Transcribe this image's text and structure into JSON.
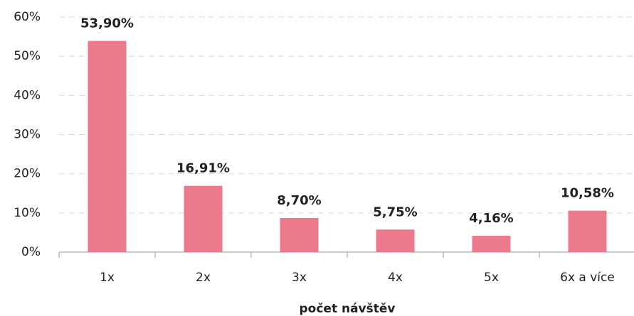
{
  "chart_data": {
    "type": "bar",
    "x_label": "počet návštěv",
    "categories": [
      "1x",
      "2x",
      "3x",
      "4x",
      "5x",
      "6x a více"
    ],
    "values": [
      53.9,
      16.91,
      8.7,
      5.75,
      4.16,
      10.58
    ],
    "value_labels": [
      "53,90%",
      "16,91%",
      "8,70%",
      "5,75%",
      "4,16%",
      "10,58%"
    ],
    "color": "#ec7a8c",
    "ylim": [
      0,
      60
    ],
    "yticks": [
      {
        "value": 0,
        "label": "0%"
      },
      {
        "value": 10,
        "label": "10%"
      },
      {
        "value": 20,
        "label": "20%"
      },
      {
        "value": 30,
        "label": "30%"
      },
      {
        "value": 40,
        "label": "40%"
      },
      {
        "value": 50,
        "label": "50%"
      },
      {
        "value": 60,
        "label": "60%"
      }
    ],
    "grid": true
  }
}
